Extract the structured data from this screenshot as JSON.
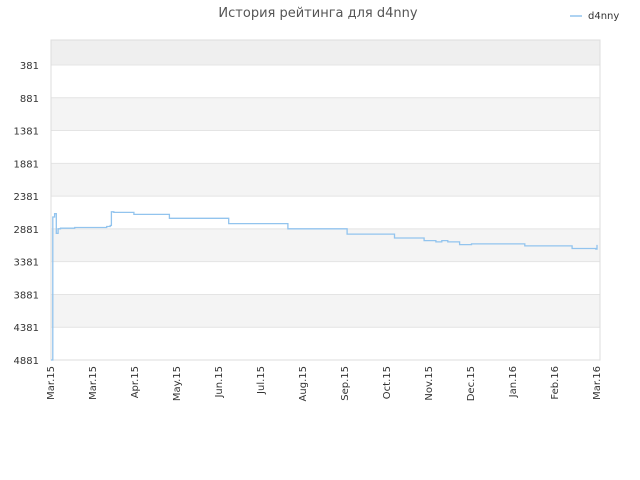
{
  "chart_data": {
    "type": "line",
    "title": "История рейтинга для d4nny",
    "y_ticks": [
      381,
      881,
      1381,
      1881,
      2381,
      2881,
      3381,
      3881,
      4381,
      4881
    ],
    "ylim": [
      4881,
      381
    ],
    "y_inverted": true,
    "x_tick_labels": [
      "Mar.15",
      "Mar.15",
      "Apr.15",
      "May.15",
      "Jun.15",
      "Jul.15",
      "Aug.15",
      "Sep.15",
      "Oct.15",
      "Nov.15",
      "Dec.15",
      "Jan.16",
      "Feb.16",
      "Mar.16"
    ],
    "grid": "horizontal bands",
    "legend_position": "top-right",
    "series": [
      {
        "name": "d4nny",
        "color": "#92c4ee",
        "points": [
          [
            0.0,
            4881
          ],
          [
            0.15,
            2700
          ],
          [
            0.3,
            2650
          ],
          [
            0.45,
            2950
          ],
          [
            0.6,
            2880
          ],
          [
            0.8,
            2870
          ],
          [
            2.0,
            2860
          ],
          [
            4.7,
            2845
          ],
          [
            5.0,
            2830
          ],
          [
            5.1,
            2620
          ],
          [
            5.3,
            2630
          ],
          [
            7.0,
            2660
          ],
          [
            10.0,
            2720
          ],
          [
            15.0,
            2800
          ],
          [
            20.0,
            2880
          ],
          [
            25.0,
            2960
          ],
          [
            29.0,
            3020
          ],
          [
            31.5,
            3060
          ],
          [
            32.5,
            3080
          ],
          [
            33.0,
            3060
          ],
          [
            33.5,
            3080
          ],
          [
            34.5,
            3120
          ],
          [
            35.5,
            3110
          ],
          [
            40.0,
            3140
          ],
          [
            44.0,
            3180
          ],
          [
            46.0,
            3190
          ],
          [
            46.1,
            3125
          ]
        ]
      }
    ]
  }
}
